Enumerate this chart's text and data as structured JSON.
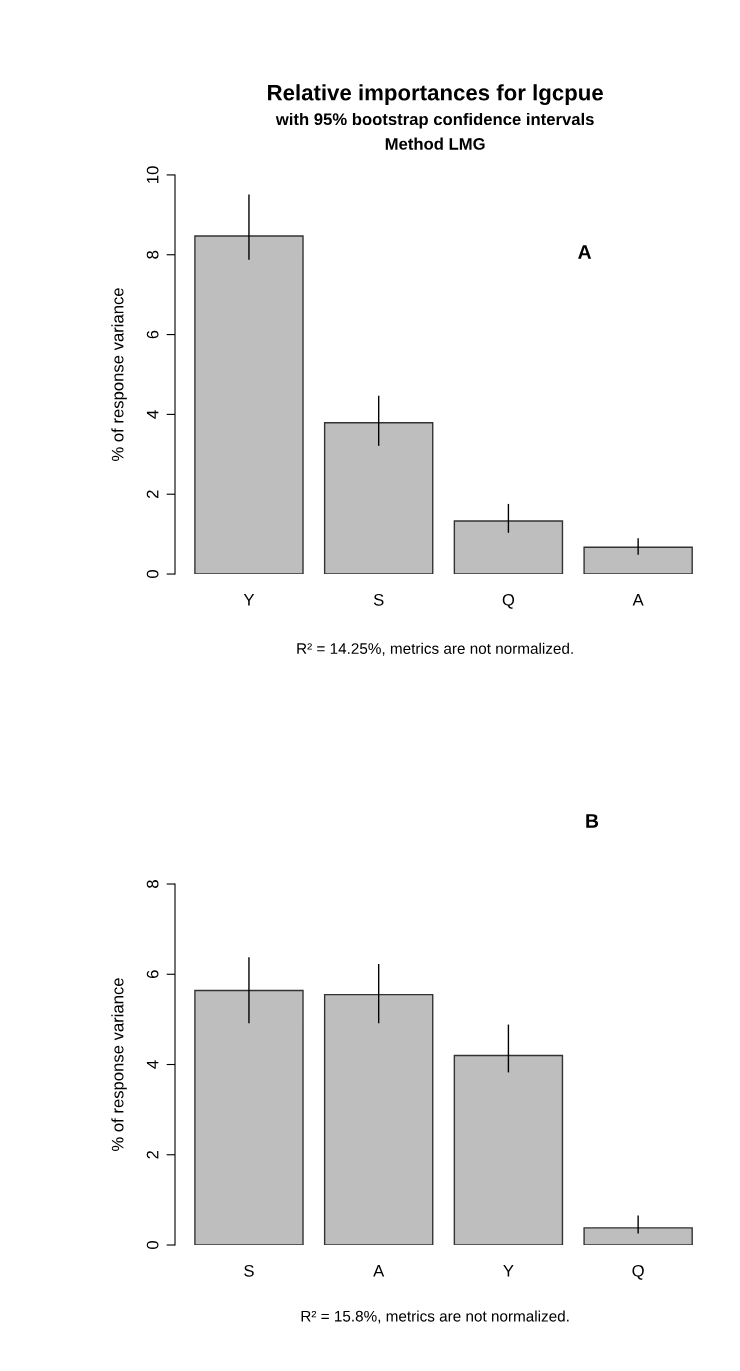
{
  "chart_data": [
    {
      "type": "bar",
      "title": "Relative importances for lgcpue",
      "subtitle": "with 95% bootstrap confidence intervals",
      "ylabel": "% of response variance",
      "categories": [
        "Y",
        "S",
        "Q",
        "A"
      ],
      "values": [
        8.47,
        3.79,
        1.33,
        0.67
      ],
      "errors": [
        [
          7.89,
          9.49
        ],
        [
          3.23,
          4.45
        ],
        [
          1.05,
          1.74
        ],
        [
          0.5,
          0.88
        ]
      ],
      "color": "#bebebe",
      "ylim": [
        0,
        10
      ],
      "yticks": [
        0,
        2,
        4,
        6,
        8,
        10
      ],
      "grid": false,
      "legend": false,
      "annotations": [
        "Method LMG",
        "A",
        "R² = 14.25%, metrics are not normalized."
      ]
    },
    {
      "type": "bar",
      "ylabel": "% of response variance",
      "categories": [
        "S",
        "A",
        "Y",
        "Q"
      ],
      "values": [
        5.64,
        5.55,
        4.2,
        0.38
      ],
      "errors": [
        [
          4.93,
          6.36
        ],
        [
          4.93,
          6.21
        ],
        [
          3.84,
          4.87
        ],
        [
          0.27,
          0.64
        ]
      ],
      "color": "#bebebe",
      "ylim": [
        0,
        8
      ],
      "yticks": [
        0,
        2,
        4,
        6,
        8
      ],
      "grid": false,
      "legend": false,
      "annotations": [
        "B",
        "R² = 15.8%, metrics are not normalized."
      ]
    }
  ]
}
